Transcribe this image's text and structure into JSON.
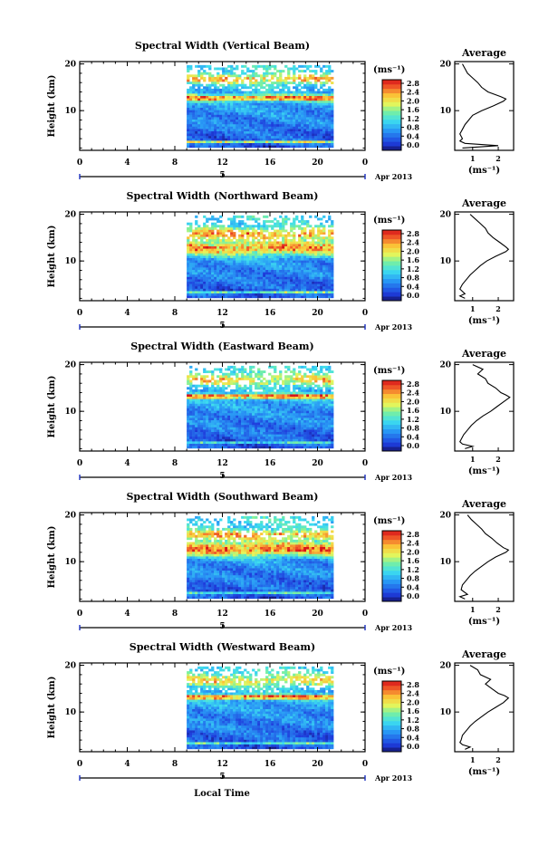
{
  "figure": {
    "date_label": "Apr 2013",
    "day_label": "5",
    "xlabel": "Local Time",
    "ylabel": "Height (km)",
    "cbar_unit": "(ms⁻¹)",
    "avg_title": "Average",
    "avg_xlabel": "(ms⁻¹)"
  },
  "chart_data": [
    {
      "type": "heatmap",
      "title": "Spectral Width (Vertical Beam)",
      "xlabel": "Local Time",
      "ylabel": "Height (km)",
      "xlim": [
        0,
        24
      ],
      "ylim": [
        1.5,
        20.5
      ],
      "x_ticks": [
        "0",
        "4",
        "8",
        "12",
        "16",
        "20",
        "0"
      ],
      "y_ticks": [
        "10",
        "20"
      ],
      "data_start_hour": 9,
      "data_end_hour": 21.3,
      "colorbar": {
        "ticks": [
          "0.0",
          "0.4",
          "0.8",
          "1.2",
          "1.6",
          "2.0",
          "2.4",
          "2.8"
        ],
        "range": [
          0,
          3.0
        ]
      },
      "features": [
        {
          "height_km": 12.5,
          "width_ms": 2.4,
          "thickness_km": 1.3
        },
        {
          "height_km": 16.5,
          "width_ms": 1.8,
          "thickness_km": 2.0
        },
        {
          "height_km": 3.0,
          "width_ms": 2.4,
          "thickness_km": 0.5
        }
      ],
      "average": {
        "xlim": [
          0.3,
          2.6
        ],
        "x_ticks": [
          "1",
          "2"
        ],
        "heights": [
          2,
          2.5,
          3,
          3.5,
          4,
          5,
          6,
          7,
          8,
          9,
          10,
          11,
          12,
          12.5,
          13,
          14,
          15,
          16,
          17,
          18,
          19,
          20
        ],
        "values": [
          0.6,
          2.0,
          0.7,
          0.5,
          0.6,
          0.5,
          0.6,
          0.7,
          0.85,
          1.0,
          1.35,
          1.8,
          2.2,
          2.3,
          2.1,
          1.6,
          1.35,
          1.2,
          1.0,
          0.8,
          0.7,
          0.6
        ]
      }
    },
    {
      "type": "heatmap",
      "title": "Spectral Width (Northward Beam)",
      "xlabel": "Local Time",
      "ylabel": "Height (km)",
      "xlim": [
        0,
        24
      ],
      "ylim": [
        1.5,
        20.5
      ],
      "x_ticks": [
        "0",
        "4",
        "8",
        "12",
        "16",
        "20",
        "0"
      ],
      "y_ticks": [
        "10",
        "20"
      ],
      "data_start_hour": 9,
      "data_end_hour": 21.3,
      "colorbar": {
        "ticks": [
          "0.0",
          "0.4",
          "0.8",
          "1.2",
          "1.6",
          "2.0",
          "2.4",
          "2.8"
        ],
        "range": [
          0,
          3.0
        ]
      },
      "features": [
        {
          "height_km": 12.5,
          "width_ms": 2.2,
          "thickness_km": 3.0
        },
        {
          "height_km": 15.5,
          "width_ms": 2.0,
          "thickness_km": 2.5
        },
        {
          "height_km": 3.0,
          "width_ms": 2.0,
          "thickness_km": 0.5
        }
      ],
      "average": {
        "xlim": [
          0.3,
          2.6
        ],
        "x_ticks": [
          "1",
          "2"
        ],
        "heights": [
          2,
          2.5,
          3,
          4,
          5,
          6,
          7,
          8,
          9,
          10,
          11,
          12,
          12.5,
          13,
          14,
          15,
          16,
          17,
          18,
          19,
          20
        ],
        "values": [
          0.7,
          0.5,
          0.7,
          0.5,
          0.6,
          0.75,
          0.9,
          1.1,
          1.3,
          1.55,
          1.9,
          2.3,
          2.4,
          2.3,
          2.05,
          1.8,
          1.6,
          1.5,
          1.3,
          1.1,
          0.9
        ]
      }
    },
    {
      "type": "heatmap",
      "title": "Spectral Width (Eastward Beam)",
      "xlabel": "Local Time",
      "ylabel": "Height (km)",
      "xlim": [
        0,
        24
      ],
      "ylim": [
        1.5,
        20.5
      ],
      "x_ticks": [
        "0",
        "4",
        "8",
        "12",
        "16",
        "20",
        "0"
      ],
      "y_ticks": [
        "10",
        "20"
      ],
      "data_start_hour": 9,
      "data_end_hour": 21.3,
      "colorbar": {
        "ticks": [
          "0.0",
          "0.4",
          "0.8",
          "1.2",
          "1.6",
          "2.0",
          "2.4",
          "2.8"
        ],
        "range": [
          0,
          3.0
        ]
      },
      "features": [
        {
          "height_km": 13.0,
          "width_ms": 2.6,
          "thickness_km": 1.0
        },
        {
          "height_km": 16.5,
          "width_ms": 1.6,
          "thickness_km": 2.5
        },
        {
          "height_km": 3.0,
          "width_ms": 1.6,
          "thickness_km": 0.5
        }
      ],
      "average": {
        "xlim": [
          0.3,
          2.6
        ],
        "x_ticks": [
          "1",
          "2"
        ],
        "heights": [
          2,
          2.5,
          3,
          3.5,
          4,
          5,
          6,
          7,
          8,
          9,
          10,
          11,
          12,
          13,
          13.5,
          14,
          15,
          16,
          17,
          18,
          19,
          20
        ],
        "values": [
          0.7,
          1.0,
          0.6,
          0.5,
          0.55,
          0.65,
          0.8,
          0.95,
          1.15,
          1.4,
          1.7,
          1.95,
          2.2,
          2.45,
          2.3,
          2.1,
          1.9,
          1.6,
          1.5,
          1.2,
          1.4,
          1.0
        ]
      }
    },
    {
      "type": "heatmap",
      "title": "Spectral Width (Southward Beam)",
      "xlabel": "Local Time",
      "ylabel": "Height (km)",
      "xlim": [
        0,
        24
      ],
      "ylim": [
        1.5,
        20.5
      ],
      "x_ticks": [
        "0",
        "4",
        "8",
        "12",
        "16",
        "20",
        "0"
      ],
      "y_ticks": [
        "10",
        "20"
      ],
      "data_start_hour": 9,
      "data_end_hour": 21.3,
      "colorbar": {
        "ticks": [
          "0.0",
          "0.4",
          "0.8",
          "1.2",
          "1.6",
          "2.0",
          "2.4",
          "2.8"
        ],
        "range": [
          0,
          3.0
        ]
      },
      "features": [
        {
          "height_km": 12.5,
          "width_ms": 2.4,
          "thickness_km": 3.0
        },
        {
          "height_km": 15.5,
          "width_ms": 2.0,
          "thickness_km": 2.0
        },
        {
          "height_km": 3.0,
          "width_ms": 1.8,
          "thickness_km": 0.5
        }
      ],
      "average": {
        "xlim": [
          0.3,
          2.6
        ],
        "x_ticks": [
          "1",
          "2"
        ],
        "heights": [
          2,
          2.5,
          3,
          4,
          5,
          6,
          7,
          8,
          9,
          10,
          11,
          12,
          12.5,
          13,
          14,
          15,
          16,
          17,
          18,
          19,
          20
        ],
        "values": [
          0.7,
          0.5,
          0.8,
          0.55,
          0.6,
          0.75,
          0.9,
          1.1,
          1.35,
          1.6,
          1.9,
          2.3,
          2.4,
          2.2,
          1.95,
          1.75,
          1.5,
          1.35,
          1.15,
          0.95,
          0.8
        ]
      }
    },
    {
      "type": "heatmap",
      "title": "Spectral Width (Westward Beam)",
      "xlabel": "Local Time",
      "ylabel": "Height (km)",
      "xlim": [
        0,
        24
      ],
      "ylim": [
        1.5,
        20.5
      ],
      "x_ticks": [
        "0",
        "4",
        "8",
        "12",
        "16",
        "20",
        "0"
      ],
      "y_ticks": [
        "10",
        "20"
      ],
      "data_start_hour": 9,
      "data_end_hour": 21.3,
      "colorbar": {
        "ticks": [
          "0.0",
          "0.4",
          "0.8",
          "1.2",
          "1.6",
          "2.0",
          "2.4",
          "2.8"
        ],
        "range": [
          0,
          3.0
        ]
      },
      "features": [
        {
          "height_km": 13.0,
          "width_ms": 2.6,
          "thickness_km": 1.0
        },
        {
          "height_km": 16.5,
          "width_ms": 1.6,
          "thickness_km": 2.5
        },
        {
          "height_km": 3.0,
          "width_ms": 1.8,
          "thickness_km": 0.5
        }
      ],
      "average": {
        "xlim": [
          0.3,
          2.6
        ],
        "x_ticks": [
          "1",
          "2"
        ],
        "heights": [
          2,
          2.5,
          3,
          3.5,
          4,
          5,
          6,
          7,
          8,
          9,
          10,
          11,
          12,
          13,
          13.5,
          14,
          15,
          16,
          17,
          18,
          19,
          20
        ],
        "values": [
          0.7,
          0.9,
          0.6,
          0.5,
          0.55,
          0.6,
          0.75,
          0.9,
          1.1,
          1.35,
          1.6,
          1.9,
          2.2,
          2.4,
          2.25,
          2.0,
          1.75,
          1.5,
          1.7,
          1.3,
          1.2,
          0.9
        ]
      }
    }
  ]
}
